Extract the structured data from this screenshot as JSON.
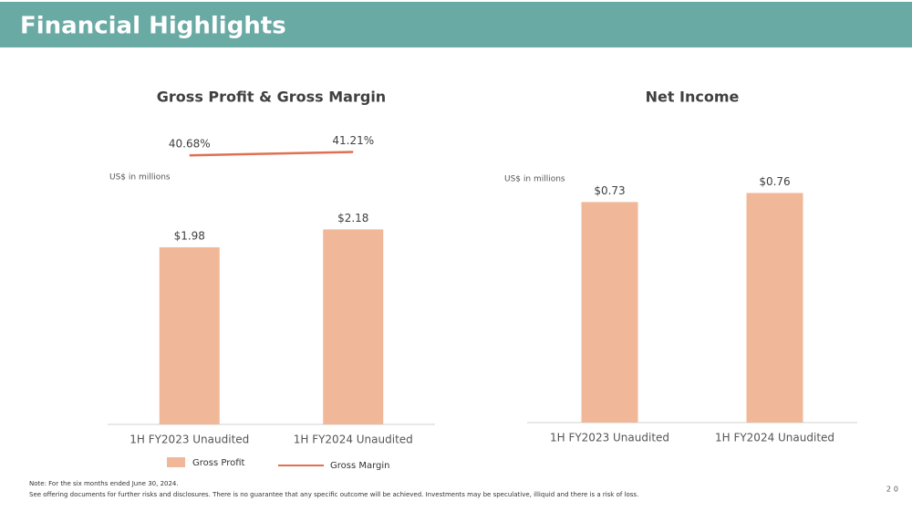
{
  "header": {
    "title": "Financial Highlights"
  },
  "chart_data": [
    {
      "type": "bar",
      "title": "Gross Profit & Gross Margin",
      "ylabel": "US$ in millions",
      "categories": [
        "1H FY2023 Unaudited",
        "1H FY2024 Unaudited"
      ],
      "ylim": [
        0,
        3
      ],
      "y2lim": [
        40,
        45
      ],
      "legend": "bottom",
      "series": [
        {
          "name": "Gross Profit",
          "color": "#f0b898",
          "values": [
            1.98,
            2.18
          ],
          "value_labels": [
            "$1.98",
            "$2.18"
          ]
        },
        {
          "name": "Gross Margin",
          "type": "line",
          "axis": "y2",
          "color": "#e07050",
          "values": [
            40.68,
            41.21
          ],
          "value_labels": [
            "40.68%",
            "41.21%"
          ]
        }
      ]
    },
    {
      "type": "bar",
      "title": "Net Income",
      "ylabel": "US$ in millions",
      "categories": [
        "1H FY2023 Unaudited",
        "1H FY2024 Unaudited"
      ],
      "ylim": [
        0,
        1
      ],
      "series": [
        {
          "name": "Net Income",
          "color": "#f0b898",
          "values": [
            0.73,
            0.76
          ],
          "value_labels": [
            "$0.73",
            "$0.76"
          ]
        }
      ]
    }
  ],
  "notes": [
    "Note: For the six months ended June 30, 2024.",
    "See offering documents for further risks and disclosures. There is no guarantee that any specific outcome will be achieved. Investments may be speculative, illiquid and there is a risk of loss."
  ],
  "page_number": "20"
}
